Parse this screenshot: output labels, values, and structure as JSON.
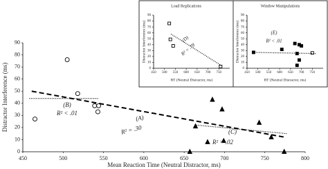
{
  "chart_data": [
    {
      "type": "scatter",
      "xlabel": "Mean Reaction Time (Neutral Distractor, ms)",
      "ylabel": "Distractor Interference (ms)",
      "xlim": [
        450,
        800
      ],
      "ylim": [
        0,
        90
      ],
      "xticks": [
        450,
        500,
        550,
        600,
        650,
        700,
        750,
        800
      ],
      "yticks": [
        0,
        10,
        20,
        30,
        40,
        50,
        60,
        70,
        80,
        90
      ],
      "series": [
        {
          "marker": "circle-open",
          "color": "#000000",
          "x": [
            465,
            505,
            518,
            539,
            543,
            544
          ],
          "values": [
            27,
            76,
            48,
            38,
            33,
            38
          ]
        },
        {
          "marker": "triangle",
          "color": "#000000",
          "x": [
            657,
            664,
            679,
            685,
            697,
            699,
            743,
            758,
            774
          ],
          "values": [
            0,
            21,
            8,
            43,
            35,
            9,
            24,
            12,
            0
          ]
        }
      ],
      "lines": [
        {
          "style": "dashed",
          "x": [
            461,
            775
          ],
          "values": [
            50,
            12
          ]
        },
        {
          "style": "dotted",
          "x": [
            458,
            544
          ],
          "values": [
            44,
            44
          ]
        },
        {
          "style": "dotted",
          "x": [
            665,
            777
          ],
          "values": [
            22,
            15
          ]
        }
      ],
      "annotations": [
        "(A)",
        "R² = .30",
        "(B)",
        "R² < .01",
        "(C)",
        "R² = .02"
      ]
    },
    {
      "type": "scatter",
      "title": "Load Replications",
      "xlabel": "RT (Neutral Distractor, ms)",
      "ylabel": "Distractor Interference (ms)",
      "xlim": [
        450,
        800
      ],
      "ylim": [
        0,
        90
      ],
      "xticks": [
        450,
        500,
        550,
        600,
        650,
        700,
        750
      ],
      "yticks": [
        0,
        10,
        20,
        30,
        40,
        50,
        60,
        70,
        80,
        90
      ],
      "series": [
        {
          "marker": "square-open",
          "color": "#000000",
          "x": [
            522,
            527,
            540,
            758
          ],
          "values": [
            76,
            49,
            38,
            3
          ]
        }
      ],
      "lines": [
        {
          "style": "dotted",
          "x": [
            530,
            760
          ],
          "values": [
            58,
            5
          ]
        }
      ],
      "annotations": [
        "(D)",
        "R² = .78"
      ]
    },
    {
      "type": "scatter",
      "title": "Window Manipulations",
      "xlabel": "RT (Neutral Distractor, ms)",
      "ylabel": "Distractor Interference (ms)",
      "xlim": [
        450,
        800
      ],
      "ylim": [
        0,
        90
      ],
      "xticks": [
        450,
        500,
        550,
        600,
        650,
        700,
        750
      ],
      "yticks": [
        0,
        10,
        20,
        30,
        40,
        50,
        60,
        70,
        80,
        90
      ],
      "series": [
        {
          "marker": "square",
          "color": "#000000",
          "x": [
            480,
            610,
            670,
            690,
            700,
            680,
            690,
            680
          ],
          "values": [
            27,
            32,
            42,
            40,
            38,
            25,
            14,
            5
          ]
        },
        {
          "marker": "square-open",
          "color": "#000000",
          "x": [
            750
          ],
          "values": [
            26
          ]
        }
      ],
      "lines": [
        {
          "style": "dotted",
          "x": [
            475,
            765
          ],
          "values": [
            27,
            25
          ]
        }
      ],
      "annotations": [
        "(E)",
        "R² < .01"
      ]
    }
  ]
}
